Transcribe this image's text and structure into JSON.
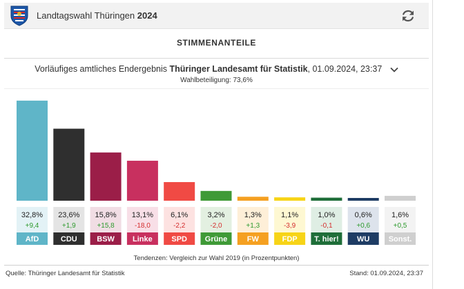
{
  "header": {
    "title_prefix": "Landtagswahl Thüringen",
    "title_year": "2024",
    "logo_icon": "thuringia-coat-of-arms-icon",
    "refresh_icon": "refresh-icon"
  },
  "section_title": "STIMMENANTEILE",
  "result_info": {
    "prefix": "Vorläufiges amtliches Endergebnis",
    "source": "Thüringer Landesamt für Statistik",
    "datetime": ", 01.09.2024, 23:37"
  },
  "turnout": "Wahlbeteiligung: 73,6%",
  "chart_data": {
    "type": "bar",
    "categories": [
      "AfD",
      "CDU",
      "BSW",
      "Linke",
      "SPD",
      "Grüne",
      "FW",
      "FDP",
      "T. hier!",
      "WU",
      "Sonst."
    ],
    "values": [
      32.8,
      23.6,
      15.8,
      13.1,
      6.1,
      3.2,
      1.3,
      1.1,
      1.0,
      0.6,
      1.6
    ],
    "value_labels": [
      "32,8%",
      "23,6%",
      "15,8%",
      "13,1%",
      "6,1%",
      "3,2%",
      "1,3%",
      "1,1%",
      "1,0%",
      "0,6%",
      "1,6%"
    ],
    "changes": [
      9.4,
      1.9,
      15.8,
      -18.0,
      -2.2,
      -2.0,
      1.3,
      -3.9,
      -0.1,
      0.6,
      0.5
    ],
    "change_labels": [
      "+9,4",
      "+1,9",
      "+15,8",
      "-18,0",
      "-2,2",
      "-2,0",
      "+1,3",
      "-3,9",
      "-0,1",
      "+0,6",
      "+0,5"
    ],
    "colors": [
      "#5fb5c8",
      "#2f2f2f",
      "#9b1e48",
      "#c8305f",
      "#f04a44",
      "#3f9a37",
      "#f5a021",
      "#f7d417",
      "#1f6e39",
      "#1e3c64",
      "#cfcfcf"
    ],
    "tint_colors": [
      "#e3f2f6",
      "#e4e4e4",
      "#f1dde4",
      "#f8dfe7",
      "#fde2e1",
      "#e3f0e1",
      "#feefd8",
      "#fef8d2",
      "#dfeee4",
      "#dde3ec",
      "#f3f3f3"
    ],
    "label_text_colors": [
      "#ffffff",
      "#ffffff",
      "#ffffff",
      "#ffffff",
      "#ffffff",
      "#ffffff",
      "#ffffff",
      "#ffffff",
      "#ffffff",
      "#ffffff",
      "#ffffff"
    ],
    "positive_color": "#2e9a2e",
    "negative_color": "#d42e2e",
    "ylim": [
      0,
      33
    ],
    "grid": false
  },
  "caption": "Tendenzen: Vergleich zur Wahl 2019 (in Prozentpunkten)",
  "footer": {
    "source": "Quelle: Thüringer Landesamt für Statistik",
    "stand": "Stand: 01.09.2024, 23:37"
  }
}
